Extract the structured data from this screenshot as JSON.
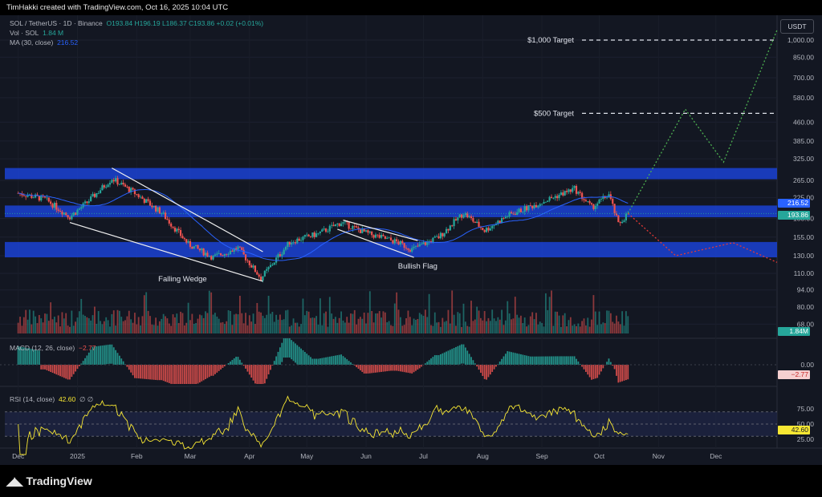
{
  "header": {
    "credit": "TimHakki created with TradingView.com, Oct 16, 2025 10:04 UTC"
  },
  "legend": {
    "symbol": "SOL / TetherUS · 1D · Binance",
    "ohlc": "O193.84 H196.19 L186.37 C193.86 +0.02 (+0.01%)",
    "vol_label": "Vol · SOL",
    "vol_value": "1.84 M",
    "ma_label": "MA (30, close)",
    "ma_value": "216.52",
    "macd_label": "MACD (12, 26, close)",
    "macd_value": "−2.77",
    "rsi_label": "RSI (14, close)",
    "rsi_value": "42.60",
    "rsi_extra": "∅  ∅"
  },
  "currency": "USDT",
  "badges": {
    "ma": "216.52",
    "price": "193.86",
    "volume": "1.84M",
    "macd": "−2.77",
    "rsi": "42.60"
  },
  "colors": {
    "bg": "#131722",
    "up": "#26a69a",
    "down": "#ef5350",
    "zone": "#1a3fc7",
    "ma": "#2962ff",
    "bull_path": "#4caf50",
    "bear_path": "#e53935",
    "rsi_line": "#f7e733"
  },
  "annotations": {
    "falling_wedge": "Falling Wedge",
    "bullish_flag": "Bullish Flag",
    "target_500": "$500 Target",
    "target_1000": "$1,000 Target"
  },
  "footer": {
    "brand": "TradingView"
  },
  "chart_data": [
    {
      "type": "candlestick",
      "title": "SOL / TetherUS · 1D · Binance",
      "price_scale": "log",
      "y_ticks": [
        "1,000.00",
        "850.00",
        "700.00",
        "580.00",
        "460.00",
        "385.00",
        "325.00",
        "265.00",
        "225.00",
        "185.00",
        "155.00",
        "130.00",
        "110.00",
        "94.00",
        "80.00",
        "68.00"
      ],
      "x_ticks": [
        "Dec",
        "2025",
        "Feb",
        "Mar",
        "Apr",
        "May",
        "Jun",
        "Jul",
        "Aug",
        "Sep",
        "Oct",
        "Nov",
        "Dec"
      ],
      "series": [
        {
          "name": "MA (30, close)",
          "last": 216.52
        },
        {
          "name": "SOL / TetherUS",
          "last": 193.86
        }
      ],
      "close_path": [
        {
          "x": "2024-12-01",
          "y": 235
        },
        {
          "x": "2024-12-15",
          "y": 222
        },
        {
          "x": "2024-12-28",
          "y": 188
        },
        {
          "x": "2025-01-06",
          "y": 215
        },
        {
          "x": "2025-01-19",
          "y": 270
        },
        {
          "x": "2025-01-31",
          "y": 235
        },
        {
          "x": "2025-02-14",
          "y": 195
        },
        {
          "x": "2025-02-28",
          "y": 145
        },
        {
          "x": "2025-03-13",
          "y": 128
        },
        {
          "x": "2025-03-26",
          "y": 140
        },
        {
          "x": "2025-04-07",
          "y": 105
        },
        {
          "x": "2025-04-22",
          "y": 148
        },
        {
          "x": "2025-05-07",
          "y": 160
        },
        {
          "x": "2025-05-19",
          "y": 178
        },
        {
          "x": "2025-06-02",
          "y": 160
        },
        {
          "x": "2025-06-17",
          "y": 148
        },
        {
          "x": "2025-06-25",
          "y": 138
        },
        {
          "x": "2025-07-09",
          "y": 155
        },
        {
          "x": "2025-07-22",
          "y": 195
        },
        {
          "x": "2025-08-02",
          "y": 165
        },
        {
          "x": "2025-08-14",
          "y": 190
        },
        {
          "x": "2025-08-28",
          "y": 210
        },
        {
          "x": "2025-09-18",
          "y": 245
        },
        {
          "x": "2025-09-27",
          "y": 205
        },
        {
          "x": "2025-10-06",
          "y": 232
        },
        {
          "x": "2025-10-11",
          "y": 175
        },
        {
          "x": "2025-10-16",
          "y": 193.86
        }
      ],
      "zones": [
        {
          "label": "resistance",
          "from": 268,
          "to": 298
        },
        {
          "label": "support/resistance",
          "from": 187,
          "to": 209
        },
        {
          "label": "support",
          "from": 128,
          "to": 148
        }
      ],
      "targets": [
        {
          "label": "$500 Target",
          "value": 500
        },
        {
          "label": "$1,000 Target",
          "value": 1000
        }
      ],
      "projections": [
        {
          "name": "bullish path",
          "points": [
            {
              "x": "2025-10-16",
              "y": 194
            },
            {
              "x": "2025-11-15",
              "y": 520
            },
            {
              "x": "2025-12-05",
              "y": 315
            },
            {
              "x": "2026-01-02",
              "y": 1100
            }
          ]
        },
        {
          "name": "bearish path",
          "points": [
            {
              "x": "2025-10-16",
              "y": 194
            },
            {
              "x": "2025-11-10",
              "y": 130
            },
            {
              "x": "2025-12-10",
              "y": 147
            },
            {
              "x": "2026-01-02",
              "y": 122
            }
          ]
        }
      ]
    },
    {
      "type": "bar",
      "title": "Vol · SOL",
      "last": "1.84 M"
    },
    {
      "type": "histogram",
      "title": "MACD (12, 26, close)",
      "y_ticks": [
        "0.00"
      ],
      "last": -2.77
    },
    {
      "type": "line",
      "title": "RSI (14, close)",
      "y_ticks": [
        "75.00",
        "50.00",
        "25.00"
      ],
      "last": 42.6
    }
  ]
}
